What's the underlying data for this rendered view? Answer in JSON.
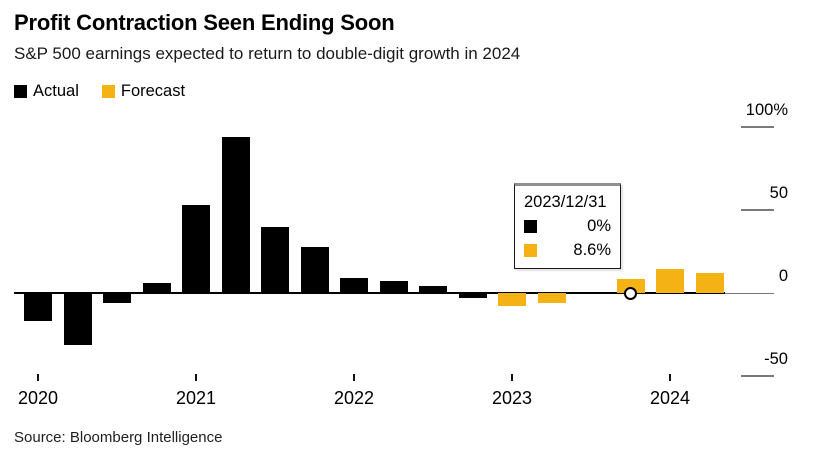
{
  "source": "Source: Bloomberg Intelligence",
  "chart_data": {
    "type": "bar",
    "title": "Profit Contraction Seen Ending Soon",
    "subtitle": "S&P 500 earnings expected to return to double-digit growth in 2024",
    "legend_position": "top-left",
    "y_axis_side": "right",
    "grid": false,
    "ylim": [
      -60,
      105
    ],
    "y_unit": "%",
    "categories": [
      "2020 Q1",
      "2020 Q2",
      "2020 Q3",
      "2020 Q4",
      "2021 Q1",
      "2021 Q2",
      "2021 Q3",
      "2021 Q4",
      "2022 Q1",
      "2022 Q2",
      "2022 Q3",
      "2022 Q4",
      "2023 Q1",
      "2023 Q2",
      "2023 Q3",
      "2023 Q4",
      "2024 Q1",
      "2024 Q2"
    ],
    "series": [
      {
        "name": "Actual",
        "color": "#000000",
        "values": [
          -17,
          -31,
          -6,
          6,
          53,
          94,
          40,
          28,
          9,
          7,
          4.5,
          -3,
          null,
          null,
          null,
          0,
          null,
          null
        ]
      },
      {
        "name": "Forecast",
        "color": "#F5B214",
        "values": [
          null,
          null,
          null,
          null,
          null,
          null,
          null,
          null,
          null,
          null,
          null,
          null,
          -8,
          -6,
          0,
          8.6,
          14.5,
          12
        ]
      }
    ],
    "y_ticks": [
      {
        "label": "100%",
        "value": 100
      },
      {
        "label": "50",
        "value": 50
      },
      {
        "label": "0",
        "value": 0
      },
      {
        "label": "-50",
        "value": -50
      }
    ],
    "x_ticks": [
      {
        "label": "2020",
        "quarter_index": 0
      },
      {
        "label": "2021",
        "quarter_index": 4
      },
      {
        "label": "2022",
        "quarter_index": 8
      },
      {
        "label": "2023",
        "quarter_index": 12
      },
      {
        "label": "2024",
        "quarter_index": 16
      }
    ],
    "marker": {
      "category": "2023 Q4",
      "series": "Actual",
      "value": 0,
      "shape": "open-circle"
    },
    "tooltip": {
      "date": "2023/12/31",
      "rows": [
        {
          "series": "Actual",
          "value": "0%"
        },
        {
          "series": "Forecast",
          "value": "8.6%"
        }
      ]
    }
  }
}
